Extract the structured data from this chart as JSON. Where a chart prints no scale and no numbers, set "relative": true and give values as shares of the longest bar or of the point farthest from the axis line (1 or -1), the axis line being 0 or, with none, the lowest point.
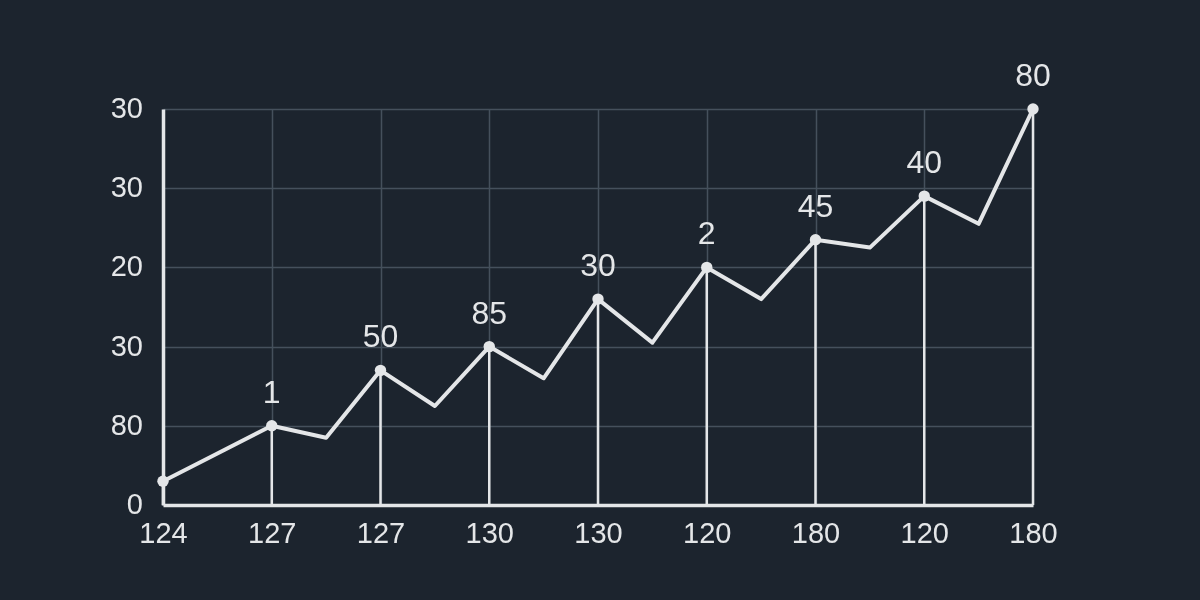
{
  "chart_data": {
    "type": "lollipop",
    "relative": true,
    "categories": [
      "124",
      null,
      "127",
      null,
      "127",
      null,
      "130",
      null,
      "130",
      null,
      "120",
      null,
      "180",
      null,
      "120",
      null,
      "180"
    ],
    "series": [
      {
        "type": "line",
        "color": "#e4e6e8",
        "marker": "none",
        "values": [
          0.06,
          0.13,
          0.2,
          0.17,
          0.34,
          0.25,
          0.4,
          0.32,
          0.52,
          0.41,
          0.6,
          0.52,
          0.67,
          0.65,
          0.78,
          0.71,
          1
        ]
      },
      {
        "color": "#e4e6e8",
        "marker": "circle",
        "values": [
          0.06,
          null,
          0.2,
          null,
          0.34,
          null,
          0.4,
          null,
          0.52,
          null,
          0.6,
          null,
          0.67,
          null,
          0.78,
          null,
          1
        ]
      }
    ],
    "annotations": [
      "0",
      "80",
      "30",
      "20",
      "30",
      "30",
      {
        "text": "1",
        "x": "127",
        "y": 0.2
      },
      {
        "text": "50",
        "y": 0.34
      },
      {
        "text": "85",
        "x": "130",
        "y": 0.4
      },
      {
        "text": "30",
        "y": 0.52
      },
      {
        "text": "2",
        "x": "120",
        "y": 0.6
      },
      {
        "text": "45",
        "x": "180",
        "y": 0.67
      },
      {
        "text": "40",
        "y": 0.78
      },
      {
        "text": "80",
        "y": 1
      }
    ],
    "grid": true
  }
}
